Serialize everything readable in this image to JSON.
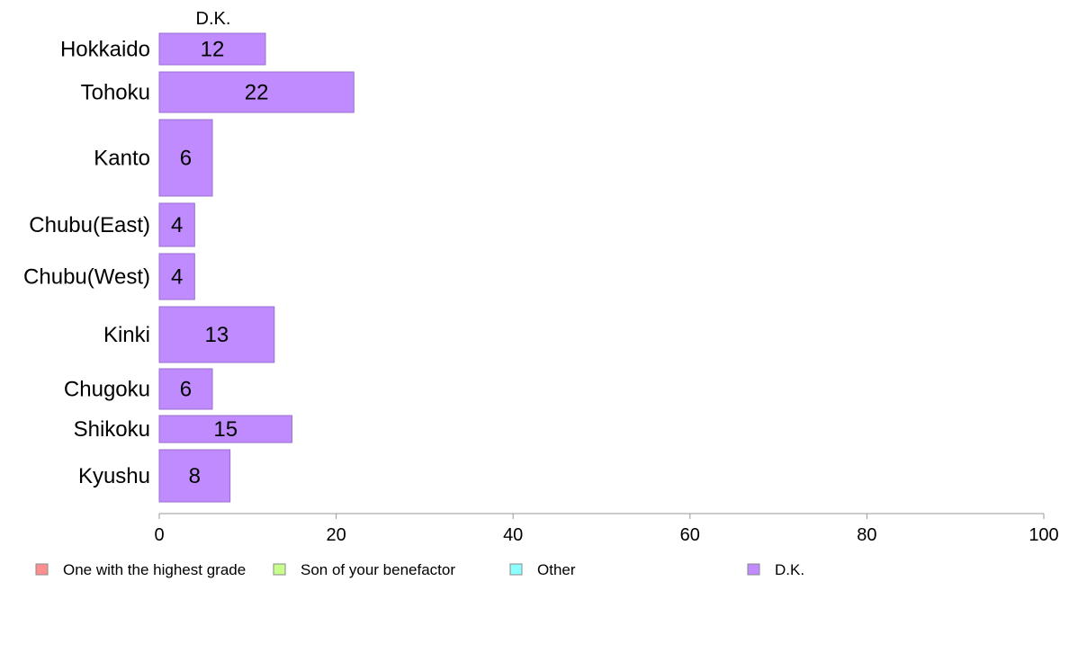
{
  "chart_data": {
    "type": "bar",
    "orientation": "horizontal",
    "series_header": "D.K.",
    "categories": [
      "Hokkaido",
      "Tohoku",
      "Kanto",
      "Chubu(East)",
      "Chubu(West)",
      "Kinki",
      "Chugoku",
      "Shikoku",
      "Kyushu"
    ],
    "series": [
      {
        "name": "D.K.",
        "color": "#bf8bff",
        "values": [
          12,
          22,
          6,
          4,
          4,
          13,
          6,
          15,
          8
        ]
      }
    ],
    "xlim": [
      0,
      100
    ],
    "x_ticks": [
      "0",
      "20",
      "40",
      "60",
      "80",
      "100"
    ],
    "grid": false,
    "legend": {
      "placement": "bottom",
      "items": [
        {
          "label": "One with the highest grade",
          "color": "#ff8f8f"
        },
        {
          "label": "Son of your benefactor",
          "color": "#c8ff8c"
        },
        {
          "label": "Other",
          "color": "#8cffff"
        },
        {
          "label": "D.K.",
          "color": "#bf8bff"
        }
      ]
    }
  }
}
